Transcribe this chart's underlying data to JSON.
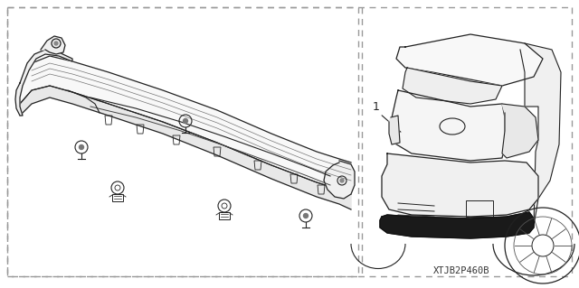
{
  "background_color": "#ffffff",
  "dashed_color": "#999999",
  "line_color": "#222222",
  "diagram_code": "XTJB2P460B",
  "part_label": "1",
  "fig_width": 6.4,
  "fig_height": 3.19,
  "dpi": 100
}
